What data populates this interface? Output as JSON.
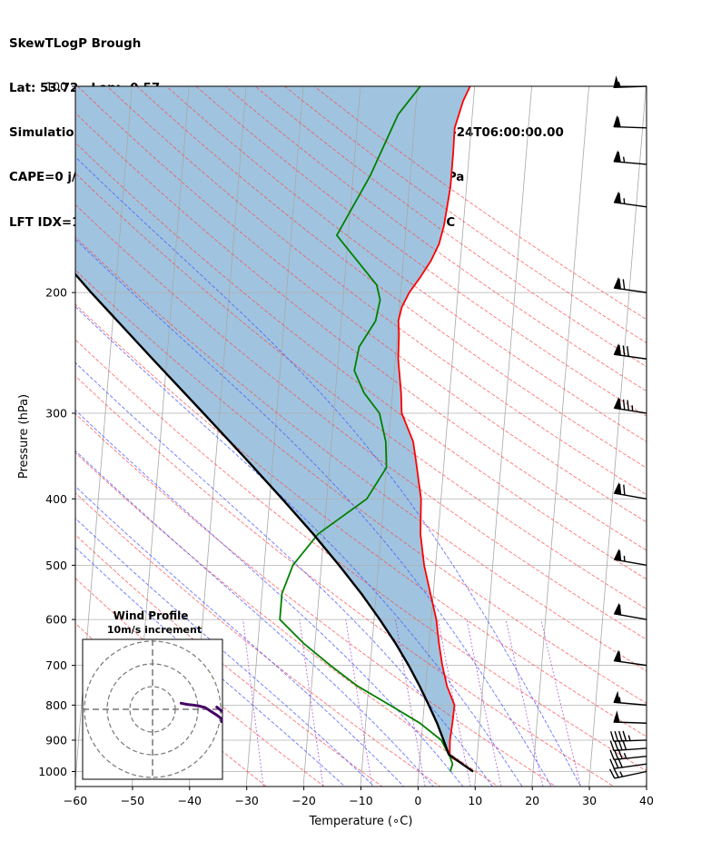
{
  "header": {
    "line1": "SkewTLogP Brough",
    "line2": "Lat: 53.72   Lon: -0.57",
    "line3": "Simulation start time: 2024-01-24_00:00:00, Valid time: 2024-01-24T06:00:00.00",
    "line4": "CAPE=0 j/kg, CIN=0 j/kg, LCL=944 hPa, LFC=nan hPa, EQ=nan hPa",
    "line5": "LFT IDX=10∘C, K IDX=0∘C, TOTAL TOTS=40∘C, SHWTR_IDX=10∘C"
  },
  "chart_data": {
    "type": "line",
    "xlabel": "Temperature (∘C)",
    "ylabel": "Pressure (hPa)",
    "xlim": [
      -60,
      40
    ],
    "ylim": [
      1050,
      100
    ],
    "y_scale": "log",
    "x_ticks": [
      -60,
      -50,
      -40,
      -30,
      -20,
      -10,
      0,
      10,
      20,
      30,
      40
    ],
    "x_tick_labels": [
      "−60",
      "−50",
      "−40",
      "−30",
      "−20",
      "−10",
      "0",
      "10",
      "20",
      "30",
      "40"
    ],
    "y_ticks": [
      1000,
      900,
      800,
      700,
      600,
      500,
      400,
      300,
      200,
      100
    ],
    "y_tick_labels": [
      "1000",
      "900",
      "800",
      "700",
      "600",
      "500",
      "400",
      "300",
      "200",
      "100"
    ],
    "grid": true,
    "series": [
      {
        "color": "#ff0000",
        "pressure": [
          1000,
          975,
          950,
          900,
          850,
          800,
          750,
          700,
          650,
          600,
          550,
          500,
          450,
          400,
          350,
          330,
          300,
          280,
          250,
          230,
          220,
          210,
          200,
          190,
          180,
          170,
          160,
          150,
          140,
          125,
          115,
          105,
          100
        ],
        "temperature": [
          9.5,
          7.5,
          5.2,
          5.0,
          5.2,
          5.3,
          3.7,
          2.6,
          1.7,
          0.9,
          -0.5,
          -2.0,
          -3.1,
          -3.5,
          -5.0,
          -5.7,
          -8.1,
          -8.5,
          -9.5,
          -9.7,
          -10.0,
          -9.6,
          -8.5,
          -6.8,
          -5.2,
          -4.0,
          -3.4,
          -3.1,
          -2.8,
          -2.8,
          -2.9,
          -1.8,
          -0.8
        ]
      },
      {
        "color": "#008000",
        "pressure": [
          1000,
          975,
          950,
          900,
          850,
          800,
          750,
          700,
          650,
          600,
          550,
          500,
          450,
          400,
          360,
          330,
          300,
          280,
          260,
          240,
          220,
          205,
          195,
          165,
          135,
          110,
          100
        ],
        "temperature": [
          5.5,
          5.8,
          5.2,
          3.5,
          -0.5,
          -6.0,
          -12.0,
          -17.0,
          -22.0,
          -26.5,
          -26.5,
          -25.0,
          -21.0,
          -13.0,
          -10.0,
          -10.5,
          -12.0,
          -15.0,
          -17.0,
          -16.5,
          -14.0,
          -13.5,
          -14.3,
          -22.0,
          -17.0,
          -13.0,
          -9.5
        ]
      },
      {
        "color": "#000000",
        "pressure": [
          1000,
          975,
          944,
          900,
          850,
          800,
          750,
          700,
          650,
          600,
          550,
          500,
          450,
          400,
          350,
          300,
          250,
          200,
          150,
          100
        ],
        "temperature": [
          9.5,
          7.5,
          5.0,
          3.9,
          2.5,
          0.8,
          -1.1,
          -3.3,
          -5.9,
          -9.0,
          -12.6,
          -16.9,
          -21.9,
          -27.8,
          -34.7,
          -42.8,
          -52.5,
          -64.2,
          -78.4,
          -96.0
        ]
      }
    ],
    "wind_barbs": {
      "pressure": [
        1000,
        975,
        950,
        925,
        900,
        850,
        800,
        700,
        600,
        500,
        400,
        300,
        250,
        200,
        150,
        130,
        115,
        100
      ],
      "speed_kt": [
        25,
        30,
        35,
        40,
        45,
        50,
        55,
        60,
        60,
        65,
        70,
        85,
        80,
        70,
        65,
        65,
        60,
        55
      ],
      "direction_deg": [
        258,
        262,
        264,
        266,
        268,
        272,
        275,
        278,
        280,
        280,
        280,
        279,
        278,
        278,
        278,
        275,
        272,
        268
      ]
    },
    "hodograph": {
      "title": "Wind Profile",
      "subtitle": "10m/s increment",
      "ring_increment_ms": 10
    }
  }
}
